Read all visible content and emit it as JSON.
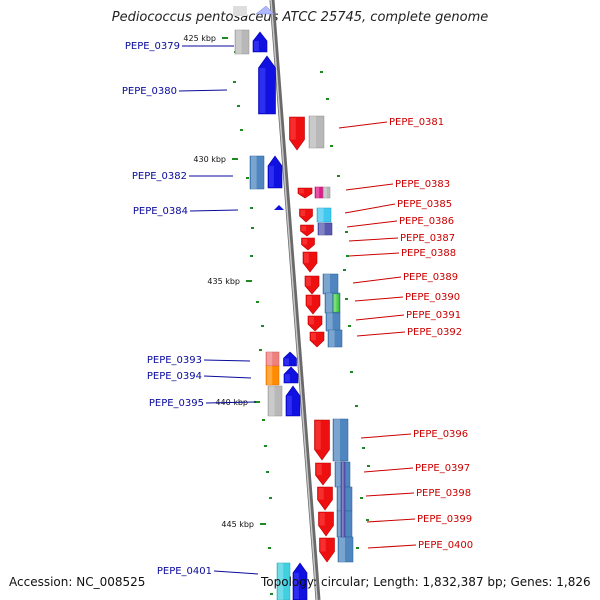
{
  "title": "Pediococcus pentosaceus ATCC 25745, complete genome",
  "accession": "Accession: NC_008525",
  "topology": "Topology: circular; Length: 1,832,387 bp; Genes: 1,826",
  "colors": {
    "left_label": "#0a0a9c",
    "right_label": "#cc0000",
    "blue_gene": "#1010e0",
    "red_gene": "#ee1010",
    "steel_box": "#4f86bf",
    "gray_box": "#b8b8b8",
    "tick_mark": "#1f8a1f",
    "backbone": "#888888"
  },
  "scale_labels": [
    "425 kbp",
    "430 kbp",
    "435 kbp",
    "440 kbp",
    "445 kbp"
  ],
  "left_genes": [
    "PEPE_0379",
    "PEPE_0380",
    "PEPE_0382",
    "PEPE_0384",
    "PEPE_0393",
    "PEPE_0394",
    "PEPE_0395",
    "PEPE_0401"
  ],
  "right_genes": [
    "PEPE_0381",
    "PEPE_0383",
    "PEPE_0385",
    "PEPE_0386",
    "PEPE_0387",
    "PEPE_0388",
    "PEPE_0389",
    "PEPE_0390",
    "PEPE_0391",
    "PEPE_0392",
    "PEPE_0396",
    "PEPE_0397",
    "PEPE_0398",
    "PEPE_0399",
    "PEPE_0400"
  ]
}
